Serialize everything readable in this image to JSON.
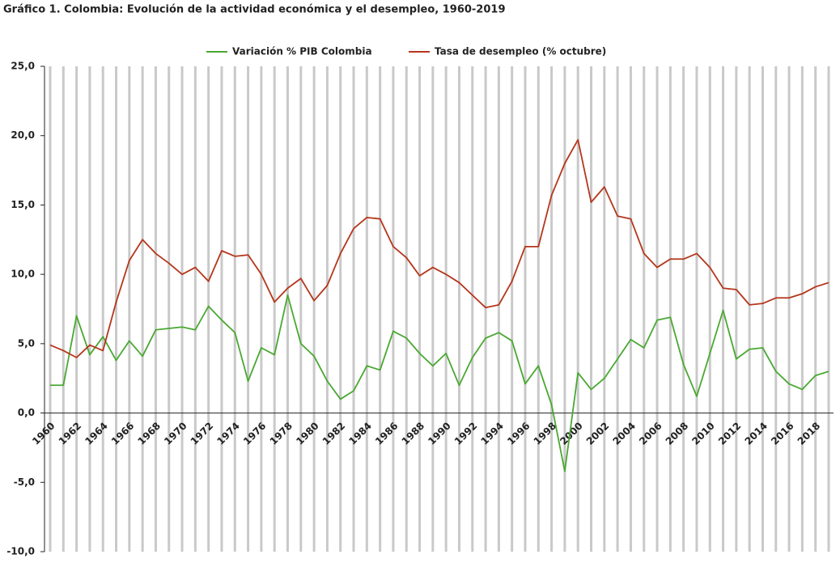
{
  "chart_data": {
    "type": "line",
    "title": "Gráfico 1. Colombia: Evolución de la actividad económica y el desempleo, 1960-2019",
    "x": [
      1960,
      1961,
      1962,
      1963,
      1964,
      1965,
      1966,
      1967,
      1968,
      1969,
      1970,
      1971,
      1972,
      1973,
      1974,
      1975,
      1976,
      1977,
      1978,
      1979,
      1980,
      1981,
      1982,
      1983,
      1984,
      1985,
      1986,
      1987,
      1988,
      1989,
      1990,
      1991,
      1992,
      1993,
      1994,
      1995,
      1996,
      1997,
      1998,
      1999,
      2000,
      2001,
      2002,
      2003,
      2004,
      2005,
      2006,
      2007,
      2008,
      2009,
      2010,
      2011,
      2012,
      2013,
      2014,
      2015,
      2016,
      2017,
      2018,
      2019
    ],
    "series": [
      {
        "name": "Variación % PIB Colombia",
        "color": "#4aa832",
        "values": [
          2.0,
          2.0,
          7.0,
          4.2,
          5.5,
          3.8,
          5.2,
          4.1,
          6.0,
          6.1,
          6.2,
          6.0,
          7.7,
          6.7,
          5.8,
          2.3,
          4.7,
          4.2,
          8.5,
          5.0,
          4.1,
          2.3,
          1.0,
          1.6,
          3.4,
          3.1,
          5.9,
          5.4,
          4.3,
          3.4,
          4.3,
          2.0,
          4.0,
          5.4,
          5.8,
          5.2,
          2.1,
          3.4,
          0.6,
          -4.2,
          2.9,
          1.7,
          2.5,
          3.9,
          5.3,
          4.7,
          6.7,
          6.9,
          3.5,
          1.2,
          4.3,
          7.4,
          3.9,
          4.6,
          4.7,
          3.0,
          2.1,
          1.7,
          2.7,
          3.0
        ]
      },
      {
        "name": "Tasa de desempleo (% octubre)",
        "color": "#b5361c",
        "values": [
          4.9,
          4.5,
          4.0,
          4.9,
          4.5,
          8.0,
          11.0,
          12.5,
          11.5,
          10.8,
          10.0,
          10.5,
          9.5,
          11.7,
          11.3,
          11.4,
          10.0,
          8.0,
          9.0,
          9.7,
          8.1,
          9.2,
          11.5,
          13.3,
          14.1,
          14.0,
          12.0,
          11.2,
          9.9,
          10.5,
          10.0,
          9.4,
          8.5,
          7.6,
          7.8,
          9.5,
          12.0,
          12.0,
          15.7,
          18.0,
          19.7,
          15.2,
          16.3,
          14.2,
          14.0,
          11.5,
          10.5,
          11.1,
          11.1,
          11.5,
          10.5,
          9.0,
          8.9,
          7.8,
          7.9,
          8.3,
          8.3,
          8.6,
          9.1,
          9.4
        ]
      }
    ],
    "xlim": [
      1960,
      2019
    ],
    "xticks": [
      1960,
      1962,
      1964,
      1966,
      1968,
      1970,
      1972,
      1974,
      1976,
      1978,
      1980,
      1982,
      1984,
      1986,
      1988,
      1990,
      1992,
      1994,
      1996,
      1998,
      2000,
      2002,
      2004,
      2006,
      2008,
      2010,
      2012,
      2014,
      2016,
      2018
    ],
    "ylim": [
      -10,
      25
    ],
    "yticks": [
      {
        "value": -10,
        "label": "-10,0"
      },
      {
        "value": -5,
        "label": "-5,0"
      },
      {
        "value": 0,
        "label": "0,0"
      },
      {
        "value": 5,
        "label": "5,0"
      },
      {
        "value": 10,
        "label": "10,0"
      },
      {
        "value": 15,
        "label": "15,0"
      },
      {
        "value": 20,
        "label": "20,0"
      },
      {
        "value": 25,
        "label": "25,0"
      }
    ],
    "grid": true,
    "legend": "top"
  }
}
